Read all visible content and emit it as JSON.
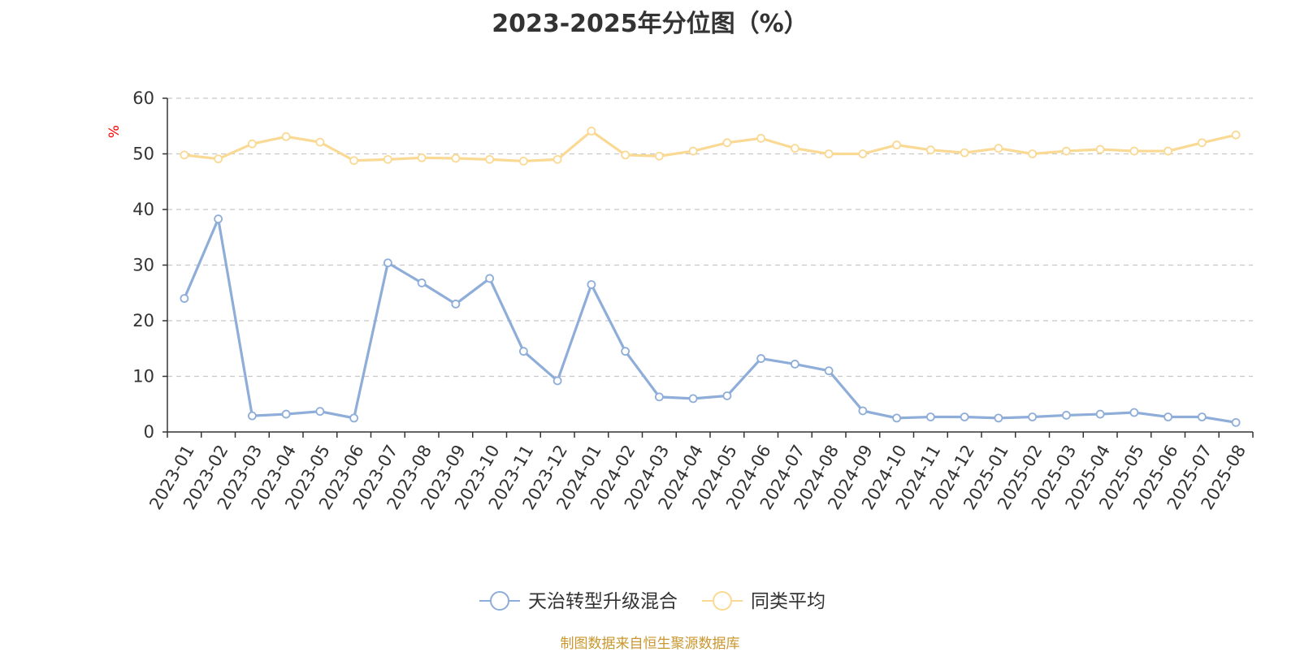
{
  "colors": {
    "series_1": "#8eadd8",
    "series_2": "#fad994",
    "grid": "#c8c8c8",
    "axis": "#333333",
    "unit": "#ff0000",
    "source": "#c9972e"
  },
  "source_note": "制图数据来自恒生聚源数据库",
  "chart_data": {
    "type": "line",
    "title": "2023-2025年分位图（%）",
    "xlabel": "",
    "ylabel": "%",
    "ylim": [
      0,
      60
    ],
    "yticks": [
      0,
      10,
      20,
      30,
      40,
      50,
      60
    ],
    "grid": true,
    "legend_position": "bottom",
    "categories": [
      "2023-01",
      "2023-02",
      "2023-03",
      "2023-04",
      "2023-05",
      "2023-06",
      "2023-07",
      "2023-08",
      "2023-09",
      "2023-10",
      "2023-11",
      "2023-12",
      "2024-01",
      "2024-02",
      "2024-03",
      "2024-04",
      "2024-05",
      "2024-06",
      "2024-07",
      "2024-08",
      "2024-09",
      "2024-10",
      "2024-11",
      "2024-12",
      "2025-01",
      "2025-02",
      "2025-03",
      "2025-04",
      "2025-05",
      "2025-06",
      "2025-07",
      "2025-08"
    ],
    "series": [
      {
        "name": "天治转型升级混合",
        "color": "#8eadd8",
        "values": [
          24,
          38.3,
          2.9,
          3.2,
          3.7,
          2.5,
          30.4,
          26.8,
          23,
          27.6,
          14.5,
          9.2,
          26.5,
          14.5,
          6.3,
          6,
          6.5,
          13.2,
          12.2,
          11,
          3.8,
          2.5,
          2.7,
          2.7,
          2.5,
          2.7,
          3,
          3.2,
          3.5,
          2.7,
          2.7,
          1.7
        ]
      },
      {
        "name": "同类平均",
        "color": "#fad994",
        "values": [
          49.8,
          49.1,
          51.8,
          53.1,
          52.1,
          48.8,
          49,
          49.3,
          49.2,
          49,
          48.7,
          49,
          54.1,
          49.8,
          49.6,
          50.5,
          52,
          52.8,
          51,
          50,
          50,
          51.6,
          50.7,
          50.2,
          51,
          50,
          50.5,
          50.8,
          50.5,
          50.5,
          52,
          53.4
        ]
      }
    ]
  }
}
